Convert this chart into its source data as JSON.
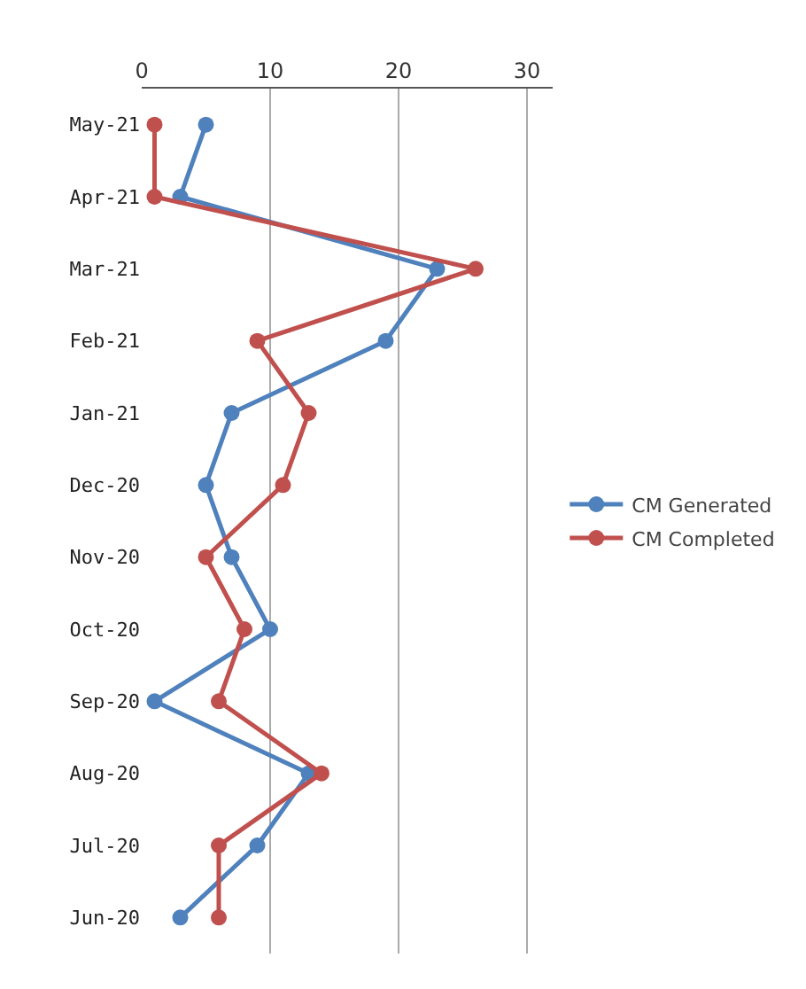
{
  "chart_data": {
    "type": "line",
    "orientation": "horizontal",
    "categories": [
      "May-21",
      "Apr-21",
      "Mar-21",
      "Feb-21",
      "Jan-21",
      "Dec-20",
      "Nov-20",
      "Oct-20",
      "Sep-20",
      "Aug-20",
      "Jul-20",
      "Jun-20"
    ],
    "series": [
      {
        "name": "CM Generated",
        "color": "#4f81bd",
        "values": [
          5,
          3,
          23,
          19,
          7,
          5,
          7,
          10,
          1,
          13,
          9,
          3
        ]
      },
      {
        "name": "CM Completed",
        "color": "#c0504d",
        "values": [
          1,
          1,
          26,
          9,
          13,
          11,
          5,
          8,
          6,
          14,
          6,
          6
        ]
      }
    ],
    "xlim": [
      0,
      32
    ],
    "xticks": [
      0,
      10,
      20,
      30
    ],
    "grid": "x",
    "legend": "right",
    "marker": "circle",
    "line_style": "solid"
  }
}
